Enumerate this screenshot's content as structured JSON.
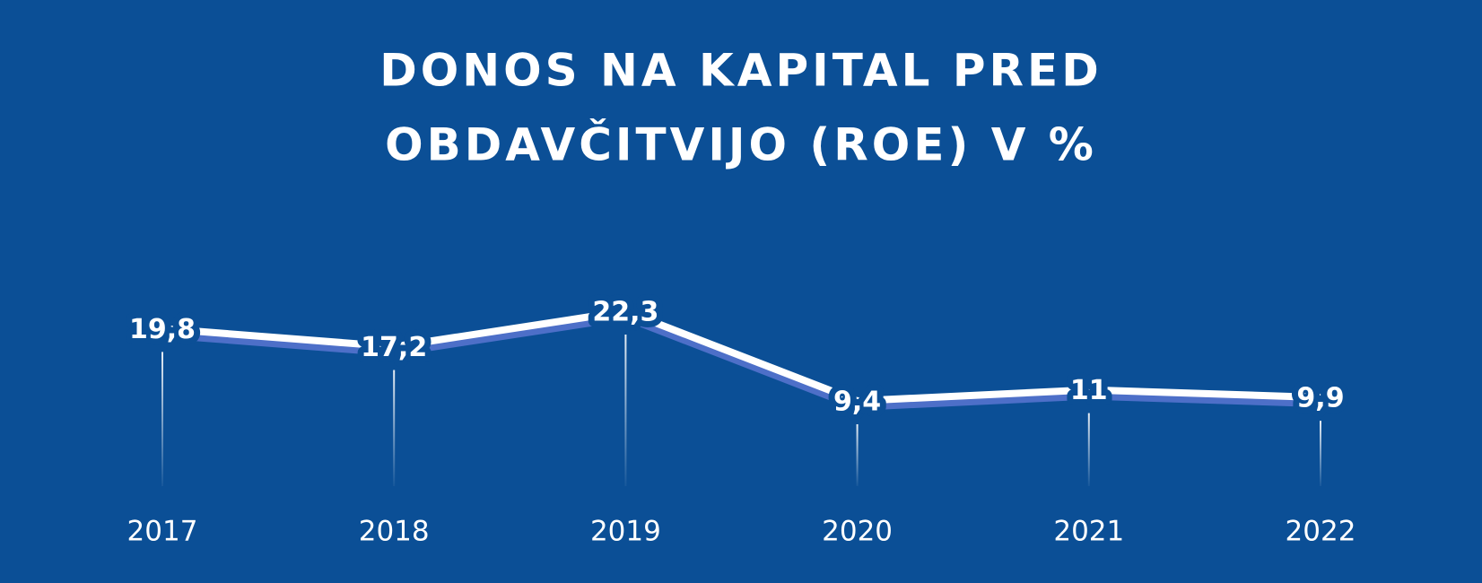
{
  "chart_data": {
    "type": "line",
    "title": [
      "DONOS NA KAPITAL PRED",
      "OBDAVČITVIJO (ROE) V %"
    ],
    "categories": [
      "2017",
      "2018",
      "2019",
      "2020",
      "2021",
      "2022"
    ],
    "series": [
      {
        "color": "#ffffff",
        "values": [
          19.8,
          17.2,
          22.3,
          9.4,
          11,
          9.9
        ],
        "value_labels": [
          "19,8",
          "17,2",
          "22,3",
          "9,4",
          "11",
          "9,9"
        ]
      }
    ]
  }
}
